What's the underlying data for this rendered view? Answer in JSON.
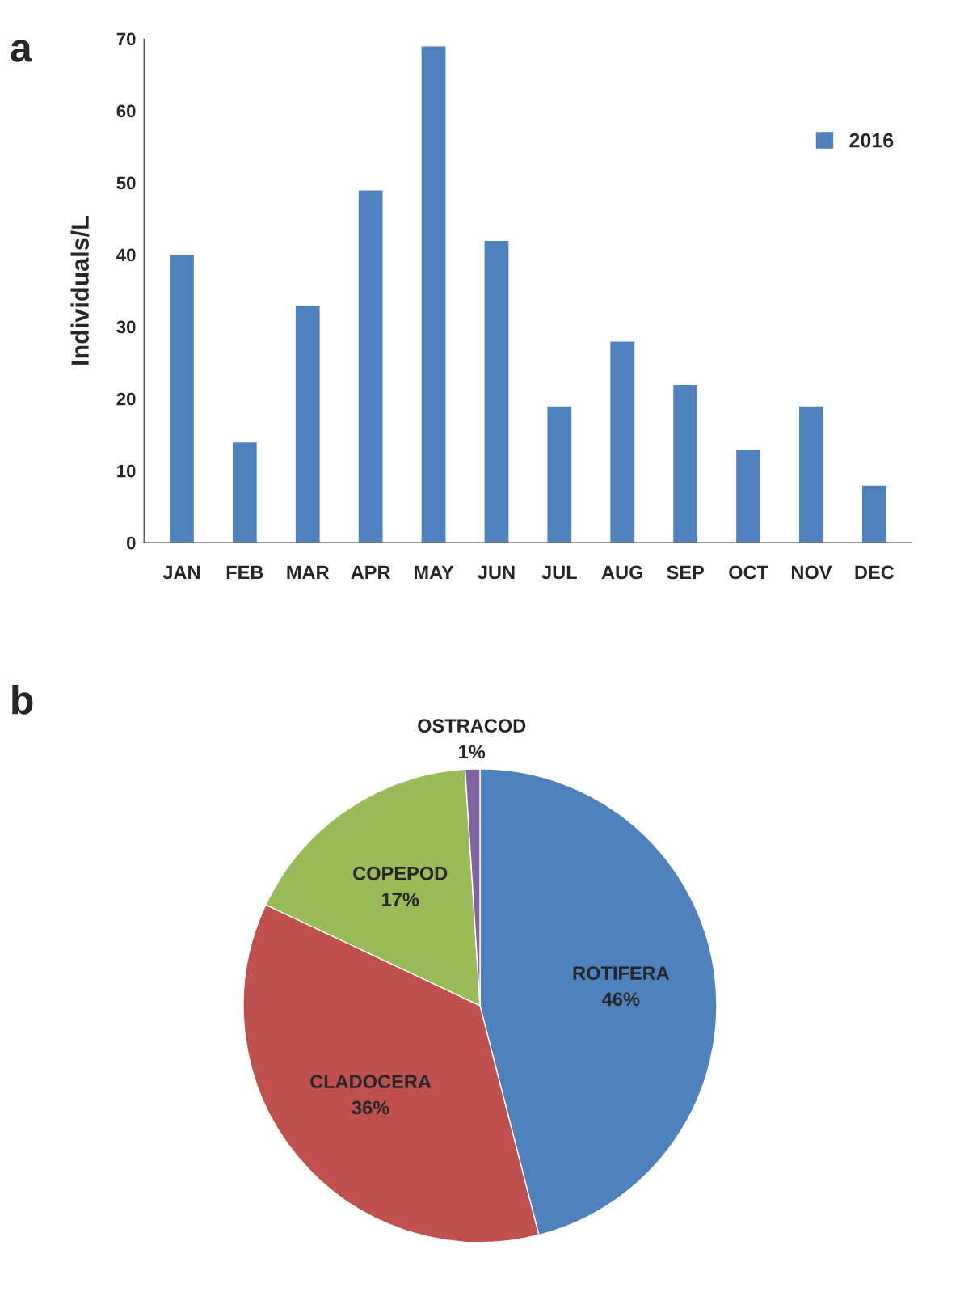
{
  "chart_data": [
    {
      "type": "bar",
      "title": "a",
      "ylabel": "Individuals/L",
      "categories": [
        "JAN",
        "FEB",
        "MAR",
        "APR",
        "MAY",
        "JUN",
        "JUL",
        "AUG",
        "SEP",
        "OCT",
        "NOV",
        "DEC"
      ],
      "series": [
        {
          "name": "2016",
          "color": "#4f81bd",
          "values": [
            40,
            14,
            33,
            49,
            69,
            42,
            19,
            28,
            22,
            13,
            19,
            8
          ]
        }
      ],
      "ylim": [
        0,
        70
      ],
      "yticks": [
        0,
        10,
        20,
        30,
        40,
        50,
        60,
        70
      ],
      "grid": false,
      "legend": "top right"
    },
    {
      "type": "pie",
      "title": "b",
      "categories": [
        "ROTIFERA",
        "CLADOCERA",
        "COPEPOD",
        "OSTRACOD"
      ],
      "values": [
        46,
        36,
        17,
        1
      ],
      "colors": [
        "#4f81bd",
        "#c0504d",
        "#9bbb59",
        "#8064a2"
      ],
      "value_labels": [
        "46%",
        "36%",
        "17%",
        "1%"
      ]
    }
  ]
}
